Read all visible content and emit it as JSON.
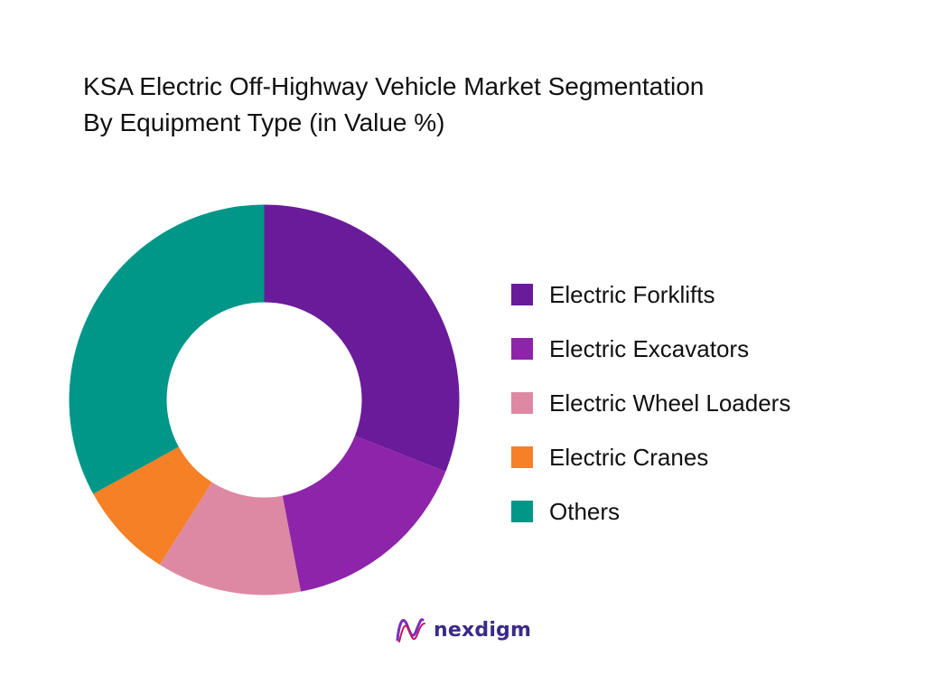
{
  "chart_data": {
    "type": "pie",
    "title": "KSA Electric Off-Highway Vehicle Market Segmentation",
    "subtitle": "By Equipment Type (in Value %)",
    "categories": [
      "Electric Forklifts",
      "Electric Excavators",
      "Electric Wheel Loaders",
      "Electric Cranes",
      "Others"
    ],
    "values": [
      31,
      16,
      12,
      8,
      33
    ],
    "colors": [
      "#6a1b9a",
      "#8e24aa",
      "#de89a3",
      "#f58025",
      "#009688"
    ],
    "donut": true,
    "legend_position": "right"
  },
  "brand": {
    "name": "nexdigm",
    "icon": "nexdigm-logo-icon"
  }
}
